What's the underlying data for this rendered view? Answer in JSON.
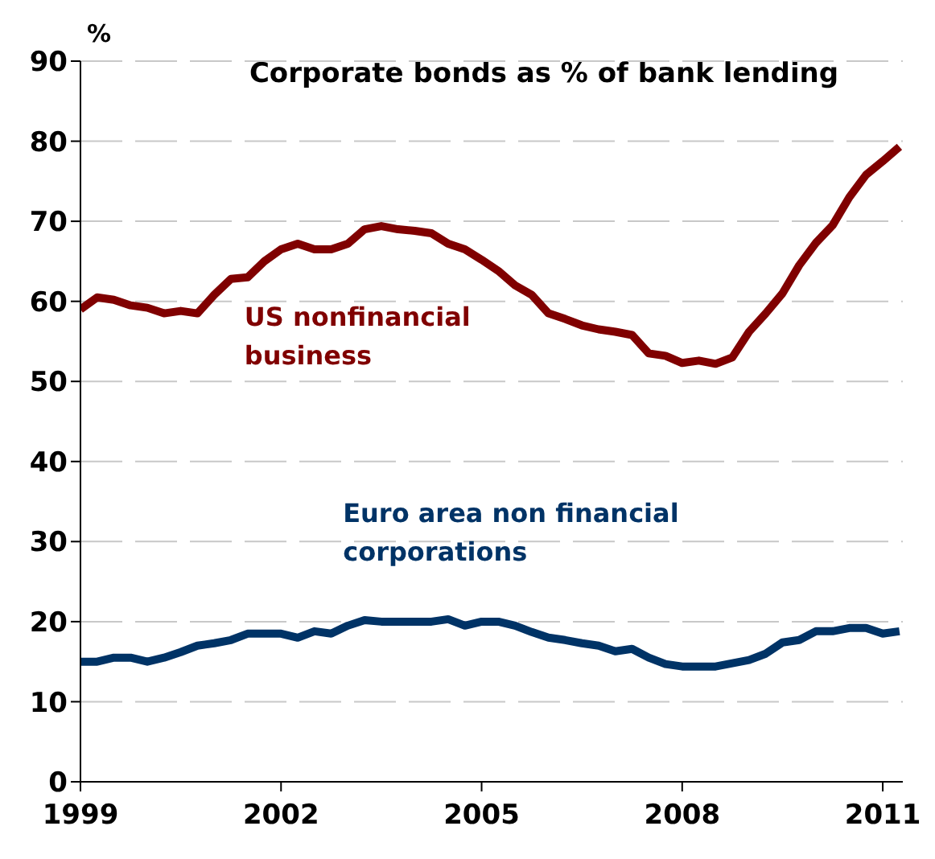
{
  "chart_data": {
    "type": "line",
    "title": "Corporate bonds as % of bank lending",
    "ylabel": "%",
    "x": [
      1999,
      1999.25,
      1999.5,
      1999.75,
      2000,
      2000.25,
      2000.5,
      2000.75,
      2001,
      2001.25,
      2001.5,
      2001.75,
      2002,
      2002.25,
      2002.5,
      2002.75,
      2003,
      2003.25,
      2003.5,
      2003.75,
      2004,
      2004.25,
      2004.5,
      2004.75,
      2005,
      2005.25,
      2005.5,
      2005.75,
      2006,
      2006.25,
      2006.5,
      2006.75,
      2007,
      2007.25,
      2007.5,
      2007.75,
      2008,
      2008.25,
      2008.5,
      2008.75,
      2009,
      2009.25,
      2009.5,
      2009.75,
      2010,
      2010.25,
      2010.5,
      2010.75,
      2011,
      2011.25
    ],
    "series": [
      {
        "name": "US nonfinancial business",
        "color": "#800000",
        "values": [
          59,
          60.5,
          60.2,
          59.5,
          59.2,
          58.5,
          58.8,
          58.5,
          60.8,
          62.8,
          63,
          65,
          66.5,
          67.2,
          66.5,
          66.5,
          67.2,
          69,
          69.4,
          69,
          68.8,
          68.5,
          67.2,
          66.5,
          65.2,
          63.8,
          62,
          60.8,
          58.5,
          57.8,
          57,
          56.5,
          56.2,
          55.8,
          53.5,
          53.2,
          52.3,
          52.6,
          52.2,
          53,
          56.2,
          58.5,
          61,
          64.5,
          67.3,
          69.5,
          73,
          75.8,
          77.5,
          79.3
        ]
      },
      {
        "name": "Euro area non financial corporations",
        "color": "#003366",
        "values": [
          15,
          15,
          15.5,
          15.5,
          15,
          15.5,
          16.2,
          17,
          17.3,
          17.7,
          18.5,
          18.5,
          18.5,
          18,
          18.8,
          18.5,
          19.5,
          20.2,
          20,
          20,
          20,
          20,
          20.3,
          19.5,
          20,
          20,
          19.5,
          18.7,
          18,
          17.7,
          17.3,
          17,
          16.3,
          16.6,
          15.5,
          14.7,
          14.4,
          14.4,
          14.4,
          14.8,
          15.2,
          16,
          17.4,
          17.7,
          18.8,
          18.8,
          19.2,
          19.2,
          18.5,
          18.8
        ]
      }
    ],
    "xlim": [
      1999,
      2011.3
    ],
    "xticks": [
      1999,
      2002,
      2005,
      2008,
      2011
    ],
    "ylim": [
      0,
      90
    ],
    "yticks": [
      0,
      10,
      20,
      30,
      40,
      50,
      60,
      70,
      80,
      90
    ],
    "grid": "y",
    "line_style": "solid",
    "marker": "none"
  }
}
